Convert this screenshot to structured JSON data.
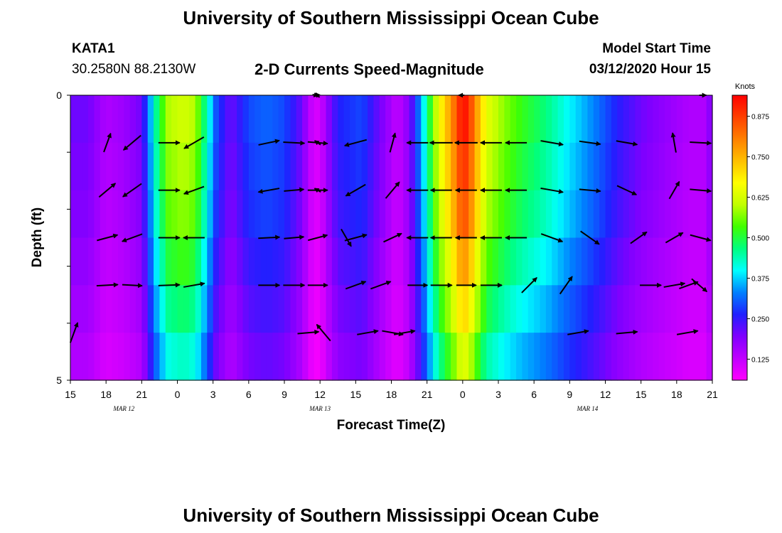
{
  "header": {
    "title": "University of Southern Mississippi Ocean Cube",
    "station_id": "KATA1",
    "station_coords": "30.2580N 88.2130W",
    "chart_title": "2-D Currents Speed-Magnitude",
    "model_label": "Model Start Time",
    "model_time": "03/12/2020 Hour 15"
  },
  "footer": {
    "title": "University of Southern Mississippi Ocean Cube"
  },
  "chart_data": {
    "type": "heatmap",
    "title": "2-D Currents Speed-Magnitude",
    "xlabel": "Forecast Time(Z)",
    "ylabel": "Depth (ft)",
    "x_range_hours": [
      0,
      54
    ],
    "y_range_ft": [
      0,
      5
    ],
    "y_inverted": true,
    "xtick_hours": [
      0,
      3,
      6,
      9,
      12,
      15,
      18,
      21,
      24,
      27,
      30,
      33,
      36,
      39,
      42,
      45,
      48,
      51,
      54
    ],
    "xtick_labels": [
      "15",
      "18",
      "21",
      "0",
      "3",
      "6",
      "9",
      "12",
      "15",
      "18",
      "21",
      "0",
      "3",
      "6",
      "9",
      "12",
      "15",
      "18",
      "21"
    ],
    "ytick_values": [
      0,
      1,
      2,
      3,
      4,
      5
    ],
    "ytick_labels": [
      "0",
      "",
      "",
      "",
      "",
      "5"
    ],
    "date_labels": [
      {
        "hour": 4.5,
        "text": "MAR 12"
      },
      {
        "hour": 21,
        "text": "MAR 13"
      },
      {
        "hour": 43.5,
        "text": "MAR 14"
      }
    ],
    "colorbar": {
      "unit": "Knots",
      "min": 0.06,
      "max": 0.94,
      "ticks": [
        0.125,
        0.25,
        0.375,
        0.5,
        0.625,
        0.75,
        0.875
      ],
      "tick_labels": [
        "0.125",
        "0.250",
        "0.375",
        "0.500",
        "0.625",
        "0.750",
        "0.875"
      ],
      "colors": [
        "#ff00ff",
        "#c000ff",
        "#8000ff",
        "#2020ff",
        "#0080ff",
        "#00ffff",
        "#00ff80",
        "#40ff00",
        "#c0ff00",
        "#ffff00",
        "#ffc000",
        "#ff8000",
        "#ff4000",
        "#ff0000"
      ]
    },
    "speed_profile_knots": [
      [
        0,
        0.2
      ],
      [
        1.5,
        0.2
      ],
      [
        3,
        0.14
      ],
      [
        4.5,
        0.16
      ],
      [
        6,
        0.2
      ],
      [
        6.5,
        0.3
      ],
      [
        7.3,
        0.45
      ],
      [
        8.2,
        0.57
      ],
      [
        9.5,
        0.6
      ],
      [
        10.5,
        0.57
      ],
      [
        11.3,
        0.45
      ],
      [
        12.3,
        0.28
      ],
      [
        13.5,
        0.2
      ],
      [
        15,
        0.28
      ],
      [
        16.5,
        0.3
      ],
      [
        18,
        0.28
      ],
      [
        19.5,
        0.2
      ],
      [
        20,
        0.14
      ],
      [
        20.5,
        0.1
      ],
      [
        21,
        0.1
      ],
      [
        21.5,
        0.16
      ],
      [
        22.5,
        0.25
      ],
      [
        24.5,
        0.28
      ],
      [
        26,
        0.2
      ],
      [
        27.5,
        0.12
      ],
      [
        28.5,
        0.18
      ],
      [
        29.5,
        0.34
      ],
      [
        30.3,
        0.5
      ],
      [
        31,
        0.63
      ],
      [
        32,
        0.75
      ],
      [
        32.5,
        0.82
      ],
      [
        33,
        0.9
      ],
      [
        33.5,
        0.86
      ],
      [
        34.2,
        0.74
      ],
      [
        35,
        0.62
      ],
      [
        36.5,
        0.55
      ],
      [
        38,
        0.5
      ],
      [
        40,
        0.45
      ],
      [
        42,
        0.38
      ],
      [
        44,
        0.32
      ],
      [
        46,
        0.25
      ],
      [
        48,
        0.2
      ],
      [
        50,
        0.17
      ],
      [
        52,
        0.14
      ],
      [
        53.4,
        0.14
      ],
      [
        54,
        0.2
      ]
    ],
    "depth_factors": [
      1.04,
      1.0,
      0.96,
      0.88,
      0.8,
      0.72
    ],
    "vectors": [
      {
        "row": 0,
        "hour": 20.6,
        "angle": 15,
        "len": 8
      },
      {
        "row": 0,
        "hour": 20.8,
        "angle": -130,
        "len": 8
      },
      {
        "row": 0,
        "hour": 32.9,
        "angle": 180,
        "len": 8
      },
      {
        "row": 0,
        "hour": 53.2,
        "angle": 0,
        "len": 10
      },
      {
        "row": 1,
        "hour": 3.1,
        "angle": -70,
        "len": 28
      },
      {
        "row": 1,
        "hour": 5.2,
        "angle": 140,
        "len": 32
      },
      {
        "row": 1,
        "hour": 8.3,
        "angle": 0,
        "len": 30
      },
      {
        "row": 1,
        "hour": 10.4,
        "angle": 150,
        "len": 32
      },
      {
        "row": 1,
        "hour": 16.7,
        "angle": -12,
        "len": 30
      },
      {
        "row": 1,
        "hour": 18.8,
        "angle": 3,
        "len": 30
      },
      {
        "row": 1,
        "hour": 20.8,
        "angle": 5,
        "len": 28
      },
      {
        "row": 1,
        "hour": 20.8,
        "angle": -145,
        "len": 10
      },
      {
        "row": 1,
        "hour": 24.0,
        "angle": 165,
        "len": 32
      },
      {
        "row": 1,
        "hour": 27.1,
        "angle": -75,
        "len": 28
      },
      {
        "row": 1,
        "hour": 29.2,
        "angle": 180,
        "len": 30
      },
      {
        "row": 1,
        "hour": 31.2,
        "angle": 180,
        "len": 32
      },
      {
        "row": 1,
        "hour": 33.3,
        "angle": 180,
        "len": 32
      },
      {
        "row": 1,
        "hour": 35.4,
        "angle": 180,
        "len": 30
      },
      {
        "row": 1,
        "hour": 37.5,
        "angle": 180,
        "len": 30
      },
      {
        "row": 1,
        "hour": 40.5,
        "angle": 10,
        "len": 32
      },
      {
        "row": 1,
        "hour": 43.7,
        "angle": 8,
        "len": 30
      },
      {
        "row": 1,
        "hour": 46.8,
        "angle": 10,
        "len": 30
      },
      {
        "row": 1,
        "hour": 50.8,
        "angle": -100,
        "len": 28
      },
      {
        "row": 1,
        "hour": 53.0,
        "angle": 3,
        "len": 30
      },
      {
        "row": 2,
        "hour": 3.1,
        "angle": -40,
        "len": 30
      },
      {
        "row": 2,
        "hour": 5.2,
        "angle": 145,
        "len": 32
      },
      {
        "row": 2,
        "hour": 8.3,
        "angle": 0,
        "len": 30
      },
      {
        "row": 2,
        "hour": 10.4,
        "angle": 160,
        "len": 30
      },
      {
        "row": 2,
        "hour": 16.7,
        "angle": 170,
        "len": 30
      },
      {
        "row": 2,
        "hour": 18.8,
        "angle": -5,
        "len": 28
      },
      {
        "row": 2,
        "hour": 20.8,
        "angle": 0,
        "len": 28
      },
      {
        "row": 2,
        "hour": 20.8,
        "angle": -150,
        "len": 10
      },
      {
        "row": 2,
        "hour": 24.0,
        "angle": 150,
        "len": 32
      },
      {
        "row": 2,
        "hour": 27.1,
        "angle": -50,
        "len": 30
      },
      {
        "row": 2,
        "hour": 29.2,
        "angle": 180,
        "len": 30
      },
      {
        "row": 2,
        "hour": 31.2,
        "angle": 180,
        "len": 30
      },
      {
        "row": 2,
        "hour": 33.3,
        "angle": 180,
        "len": 30
      },
      {
        "row": 2,
        "hour": 35.4,
        "angle": 180,
        "len": 30
      },
      {
        "row": 2,
        "hour": 37.5,
        "angle": 180,
        "len": 30
      },
      {
        "row": 2,
        "hour": 40.5,
        "angle": 10,
        "len": 32
      },
      {
        "row": 2,
        "hour": 43.7,
        "angle": 5,
        "len": 30
      },
      {
        "row": 2,
        "hour": 46.8,
        "angle": 25,
        "len": 30
      },
      {
        "row": 2,
        "hour": 50.8,
        "angle": -60,
        "len": 28
      },
      {
        "row": 2,
        "hour": 53.0,
        "angle": 5,
        "len": 30
      },
      {
        "row": 3,
        "hour": 3.1,
        "angle": -15,
        "len": 30
      },
      {
        "row": 3,
        "hour": 5.2,
        "angle": 160,
        "len": 30
      },
      {
        "row": 3,
        "hour": 8.3,
        "angle": 0,
        "len": 30
      },
      {
        "row": 3,
        "hour": 10.4,
        "angle": 180,
        "len": 30
      },
      {
        "row": 3,
        "hour": 16.7,
        "angle": -3,
        "len": 30
      },
      {
        "row": 3,
        "hour": 18.8,
        "angle": -5,
        "len": 28
      },
      {
        "row": 3,
        "hour": 20.8,
        "angle": -15,
        "len": 28
      },
      {
        "row": 3,
        "hour": 24.0,
        "angle": -15,
        "len": 32
      },
      {
        "row": 3,
        "hour": 23.2,
        "angle": 60,
        "len": 28
      },
      {
        "row": 3,
        "hour": 27.1,
        "angle": -25,
        "len": 28
      },
      {
        "row": 3,
        "hour": 29.2,
        "angle": 180,
        "len": 30
      },
      {
        "row": 3,
        "hour": 31.2,
        "angle": 180,
        "len": 30
      },
      {
        "row": 3,
        "hour": 33.3,
        "angle": 180,
        "len": 30
      },
      {
        "row": 3,
        "hour": 35.4,
        "angle": 180,
        "len": 30
      },
      {
        "row": 3,
        "hour": 37.5,
        "angle": 180,
        "len": 30
      },
      {
        "row": 3,
        "hour": 40.5,
        "angle": 20,
        "len": 32
      },
      {
        "row": 3,
        "hour": 43.7,
        "angle": 35,
        "len": 32
      },
      {
        "row": 3,
        "hour": 47.8,
        "angle": -35,
        "len": 28
      },
      {
        "row": 3,
        "hour": 50.8,
        "angle": -30,
        "len": 28
      },
      {
        "row": 3,
        "hour": 53.0,
        "angle": 15,
        "len": 30
      },
      {
        "row": 4,
        "hour": 3.1,
        "angle": -3,
        "len": 30
      },
      {
        "row": 4,
        "hour": 5.2,
        "angle": 3,
        "len": 28
      },
      {
        "row": 4,
        "hour": 8.3,
        "angle": -2,
        "len": 30
      },
      {
        "row": 4,
        "hour": 10.4,
        "angle": -10,
        "len": 30
      },
      {
        "row": 4,
        "hour": 16.7,
        "angle": 0,
        "len": 30
      },
      {
        "row": 4,
        "hour": 18.8,
        "angle": 0,
        "len": 30
      },
      {
        "row": 4,
        "hour": 20.8,
        "angle": 0,
        "len": 28
      },
      {
        "row": 4,
        "hour": 24.0,
        "angle": -20,
        "len": 30
      },
      {
        "row": 4,
        "hour": 26.1,
        "angle": -20,
        "len": 30
      },
      {
        "row": 4,
        "hour": 29.2,
        "angle": 0,
        "len": 28
      },
      {
        "row": 4,
        "hour": 31.2,
        "angle": 0,
        "len": 30
      },
      {
        "row": 4,
        "hour": 33.3,
        "angle": 0,
        "len": 28
      },
      {
        "row": 4,
        "hour": 35.4,
        "angle": 0,
        "len": 30
      },
      {
        "row": 4,
        "hour": 38.6,
        "angle": -45,
        "len": 30
      },
      {
        "row": 4,
        "hour": 41.7,
        "angle": -55,
        "len": 30
      },
      {
        "row": 4,
        "hour": 48.8,
        "angle": 0,
        "len": 30
      },
      {
        "row": 4,
        "hour": 50.8,
        "angle": -10,
        "len": 30
      },
      {
        "row": 4,
        "hour": 52.9,
        "angle": 40,
        "len": 28
      },
      {
        "row": 4,
        "hour": 52.0,
        "angle": -20,
        "len": 28
      },
      {
        "row": 5,
        "hour": 0.3,
        "angle": -70,
        "len": 30
      },
      {
        "row": 5,
        "hour": 20.0,
        "angle": -5,
        "len": 30
      },
      {
        "row": 5,
        "hour": 21.3,
        "angle": -130,
        "len": 30
      },
      {
        "row": 5,
        "hour": 25.0,
        "angle": -10,
        "len": 30
      },
      {
        "row": 5,
        "hour": 28.1,
        "angle": -10,
        "len": 30
      },
      {
        "row": 5,
        "hour": 27.1,
        "angle": 10,
        "len": 30
      },
      {
        "row": 5,
        "hour": 42.7,
        "angle": -10,
        "len": 30
      },
      {
        "row": 5,
        "hour": 46.8,
        "angle": -5,
        "len": 30
      },
      {
        "row": 5,
        "hour": 51.9,
        "angle": -10,
        "len": 30
      }
    ]
  }
}
